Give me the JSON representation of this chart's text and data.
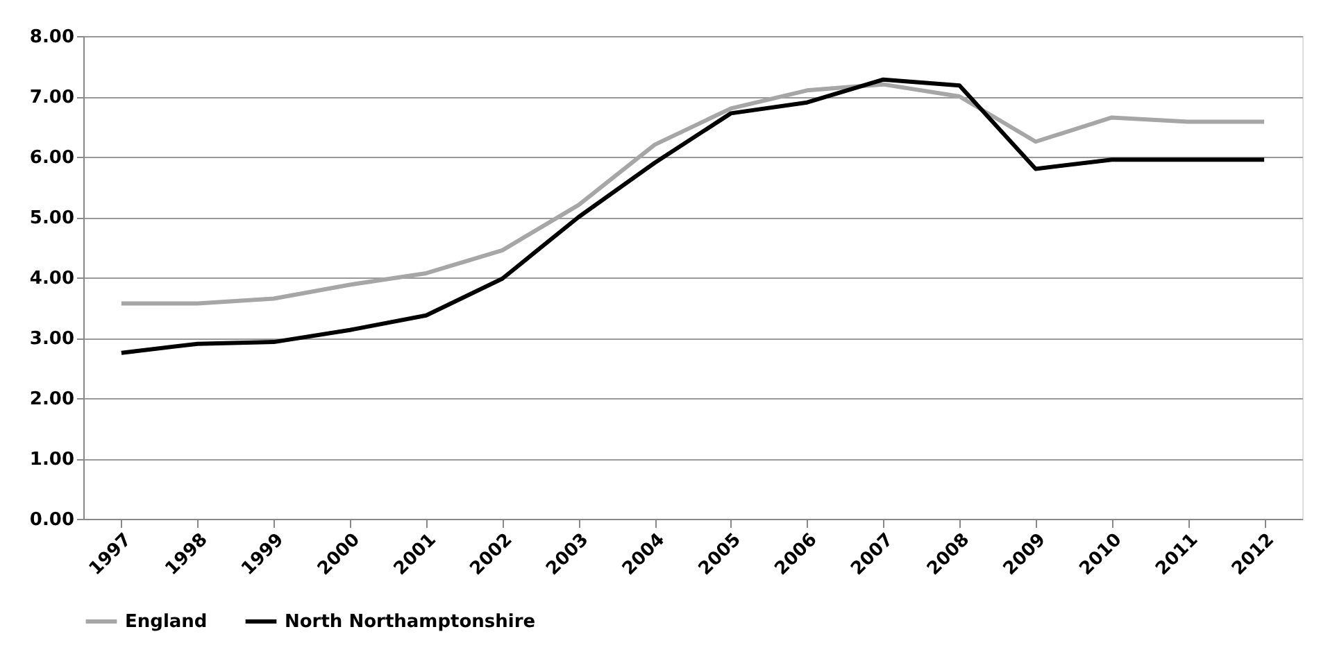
{
  "chart_data": {
    "type": "line",
    "categories": [
      "1997",
      "1998",
      "1999",
      "2000",
      "2001",
      "2002",
      "2003",
      "2004",
      "2005",
      "2006",
      "2007",
      "2008",
      "2009",
      "2010",
      "2011",
      "2012"
    ],
    "series": [
      {
        "name": "England",
        "color": "#a6a6a6",
        "values": [
          3.57,
          3.57,
          3.65,
          3.88,
          4.07,
          4.45,
          5.2,
          6.2,
          6.8,
          7.1,
          7.2,
          7.0,
          6.25,
          6.65,
          6.58,
          6.58
        ]
      },
      {
        "name": "North Northamptonshire",
        "color": "#000000",
        "values": [
          2.75,
          2.9,
          2.93,
          3.13,
          3.37,
          3.98,
          5.0,
          5.9,
          6.72,
          6.9,
          7.28,
          7.18,
          5.8,
          5.95,
          5.95,
          5.95
        ]
      }
    ],
    "ylim": [
      0,
      8
    ],
    "yticks": [
      {
        "value": 0,
        "label": "0.00"
      },
      {
        "value": 1,
        "label": "1.00"
      },
      {
        "value": 2,
        "label": "2.00"
      },
      {
        "value": 3,
        "label": "3.00"
      },
      {
        "value": 4,
        "label": "4.00"
      },
      {
        "value": 5,
        "label": "5.00"
      },
      {
        "value": 6,
        "label": "6.00"
      },
      {
        "value": 7,
        "label": "7.00"
      },
      {
        "value": 8,
        "label": "8.00"
      }
    ],
    "grid": "y",
    "legend": "bottom",
    "marker": "none",
    "line_style": "solid"
  }
}
